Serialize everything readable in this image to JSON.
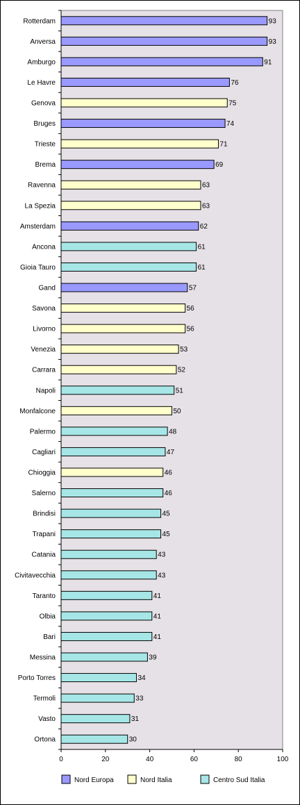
{
  "chart_data": {
    "type": "bar",
    "orientation": "horizontal",
    "categories": [
      "Rotterdam",
      "Anversa",
      "Amburgo",
      "Le Havre",
      "Genova",
      "Bruges",
      "Trieste",
      "Brema",
      "Ravenna",
      "La Spezia",
      "Amsterdam",
      "Ancona",
      "Gioia Tauro",
      "Gand",
      "Savona",
      "Livorno",
      "Venezia",
      "Carrara",
      "Napoli",
      "Monfalcone",
      "Palermo",
      "Cagliari",
      "Chioggia",
      "Salerno",
      "Brindisi",
      "Trapani",
      "Catania",
      "Civitavecchia",
      "Taranto",
      "Olbia",
      "Bari",
      "Messina",
      "Porto Torres",
      "Termoli",
      "Vasto",
      "Ortona"
    ],
    "values": [
      93,
      93,
      91,
      76,
      75,
      74,
      71,
      69,
      63,
      63,
      62,
      61,
      61,
      57,
      56,
      56,
      53,
      52,
      51,
      50,
      48,
      47,
      46,
      46,
      45,
      45,
      43,
      43,
      41,
      41,
      41,
      39,
      34,
      33,
      31,
      30
    ],
    "groups": [
      "nord_europa",
      "nord_europa",
      "nord_europa",
      "nord_europa",
      "nord_italia",
      "nord_europa",
      "nord_italia",
      "nord_europa",
      "nord_italia",
      "nord_italia",
      "nord_europa",
      "centro_sud",
      "centro_sud",
      "nord_europa",
      "nord_italia",
      "nord_italia",
      "nord_italia",
      "nord_italia",
      "centro_sud",
      "nord_italia",
      "centro_sud",
      "centro_sud",
      "nord_italia",
      "centro_sud",
      "centro_sud",
      "centro_sud",
      "centro_sud",
      "centro_sud",
      "centro_sud",
      "centro_sud",
      "centro_sud",
      "centro_sud",
      "centro_sud",
      "centro_sud",
      "centro_sud",
      "centro_sud"
    ],
    "legend": [
      {
        "key": "nord_europa",
        "name": "Nord Europa",
        "color": "#9999ff"
      },
      {
        "key": "nord_italia",
        "name": "Nord Italia",
        "color": "#ffffcc"
      },
      {
        "key": "centro_sud",
        "name": "Centro Sud Italia",
        "color": "#a6e6e6"
      }
    ],
    "xlim": [
      0,
      100
    ],
    "xticks": [
      0,
      20,
      40,
      60,
      80,
      100
    ],
    "data_labels": true,
    "grid": false,
    "legend_position": "bottom",
    "plot_background": "#e6e1e6"
  }
}
